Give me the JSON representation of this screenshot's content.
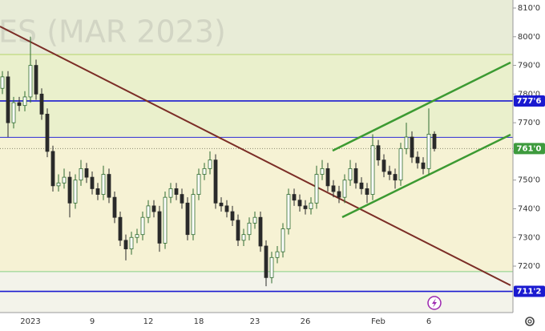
{
  "chart_data": {
    "type": "candlestick",
    "watermark": "ES (MAR 2023)",
    "categories": [
      null,
      null,
      null,
      null,
      null,
      "2023",
      null,
      null,
      null,
      null,
      null,
      null,
      null,
      null,
      null,
      null,
      "9",
      null,
      null,
      null,
      null,
      null,
      null,
      null,
      null,
      null,
      "12",
      null,
      null,
      null,
      null,
      null,
      null,
      null,
      null,
      "18",
      null,
      null,
      null,
      null,
      null,
      null,
      null,
      null,
      null,
      "23",
      null,
      null,
      null,
      null,
      null,
      null,
      null,
      null,
      "26",
      null,
      null,
      null,
      null,
      null,
      null,
      null,
      null,
      null,
      null,
      null,
      null,
      "Feb",
      null,
      null,
      null,
      null,
      null,
      null,
      null,
      null,
      "6",
      null
    ],
    "open": [
      782,
      786,
      770,
      777,
      776,
      779,
      790,
      780,
      773,
      760,
      748,
      749,
      751,
      742,
      750,
      754,
      751,
      747,
      745,
      752,
      744,
      737,
      729,
      726,
      730,
      731,
      737,
      741,
      739,
      728,
      744,
      747,
      745,
      742,
      731,
      745,
      752,
      754,
      757,
      742,
      741,
      739,
      736,
      729,
      731,
      735,
      737,
      727,
      716,
      723,
      725,
      733,
      745,
      743,
      741,
      740,
      742,
      752,
      754,
      748,
      746,
      744,
      750,
      754,
      749,
      747,
      745,
      762,
      757,
      753,
      752,
      750,
      761,
      765,
      758,
      756,
      754,
      766
    ],
    "high": [
      788,
      788,
      779,
      779,
      781,
      800,
      792,
      782,
      775,
      762,
      752,
      754,
      753,
      752,
      757,
      756,
      753,
      749,
      755,
      754,
      746,
      739,
      731,
      732,
      733,
      739,
      743,
      743,
      741,
      746,
      749,
      749,
      747,
      744,
      747,
      754,
      756,
      760,
      759,
      744,
      743,
      741,
      738,
      733,
      737,
      739,
      739,
      729,
      725,
      727,
      735,
      747,
      747,
      745,
      743,
      744,
      755,
      757,
      756,
      750,
      748,
      752,
      757,
      756,
      751,
      749,
      766,
      764,
      759,
      755,
      754,
      763,
      770,
      767,
      760,
      758,
      775,
      767
    ],
    "low": [
      780,
      765,
      768,
      774,
      774,
      777,
      778,
      771,
      758,
      746,
      746,
      747,
      737,
      740,
      748,
      749,
      745,
      743,
      743,
      742,
      735,
      727,
      722,
      724,
      728,
      729,
      735,
      737,
      725,
      726,
      742,
      743,
      740,
      729,
      729,
      743,
      750,
      752,
      740,
      739,
      737,
      734,
      727,
      727,
      729,
      733,
      725,
      713,
      714,
      721,
      723,
      731,
      741,
      739,
      738,
      738,
      740,
      750,
      746,
      744,
      742,
      742,
      748,
      747,
      745,
      742,
      743,
      755,
      751,
      750,
      747,
      748,
      759,
      756,
      754,
      752,
      752,
      760
    ],
    "close": [
      786,
      770,
      777,
      776,
      779,
      790,
      780,
      773,
      760,
      748,
      749,
      751,
      742,
      750,
      754,
      751,
      747,
      745,
      752,
      744,
      737,
      729,
      726,
      730,
      731,
      737,
      741,
      739,
      728,
      744,
      747,
      745,
      742,
      731,
      745,
      752,
      754,
      757,
      742,
      741,
      739,
      736,
      729,
      731,
      735,
      737,
      727,
      716,
      723,
      725,
      733,
      745,
      743,
      741,
      740,
      742,
      752,
      754,
      748,
      746,
      744,
      750,
      754,
      749,
      747,
      745,
      762,
      757,
      753,
      752,
      750,
      761,
      765,
      758,
      756,
      754,
      766,
      761
    ],
    "up_color": "#2f6b2f",
    "down_color": "#2a2a2a",
    "ylim": [
      703.8,
      812.8
    ],
    "yticks": [
      {
        "value": 720,
        "label": "720'0"
      },
      {
        "value": 730,
        "label": "730'0"
      },
      {
        "value": 740,
        "label": "740'0"
      },
      {
        "value": 750,
        "label": "750'0"
      },
      {
        "value": 760,
        "label": "760'0"
      },
      {
        "value": 770,
        "label": "770'0"
      },
      {
        "value": 780,
        "label": "780'0"
      },
      {
        "value": 790,
        "label": "790'0"
      },
      {
        "value": 800,
        "label": "800'0"
      },
      {
        "value": 810,
        "label": "810'0"
      }
    ],
    "horizontal_lines": [
      {
        "value": 793.8,
        "color": "#b5d46a"
      },
      {
        "value": 777.6,
        "color": "#1a1ad0",
        "label": "777'6"
      },
      {
        "value": 764.9,
        "color": "#2b2bd6"
      },
      {
        "value": 761,
        "color": "#3e9b3e",
        "label": "761'0",
        "style": "dotted"
      },
      {
        "value": 718.1,
        "color": "#86d086"
      },
      {
        "value": 711.2,
        "color": "#1a1ad0",
        "label": "711'2"
      }
    ]
  }
}
